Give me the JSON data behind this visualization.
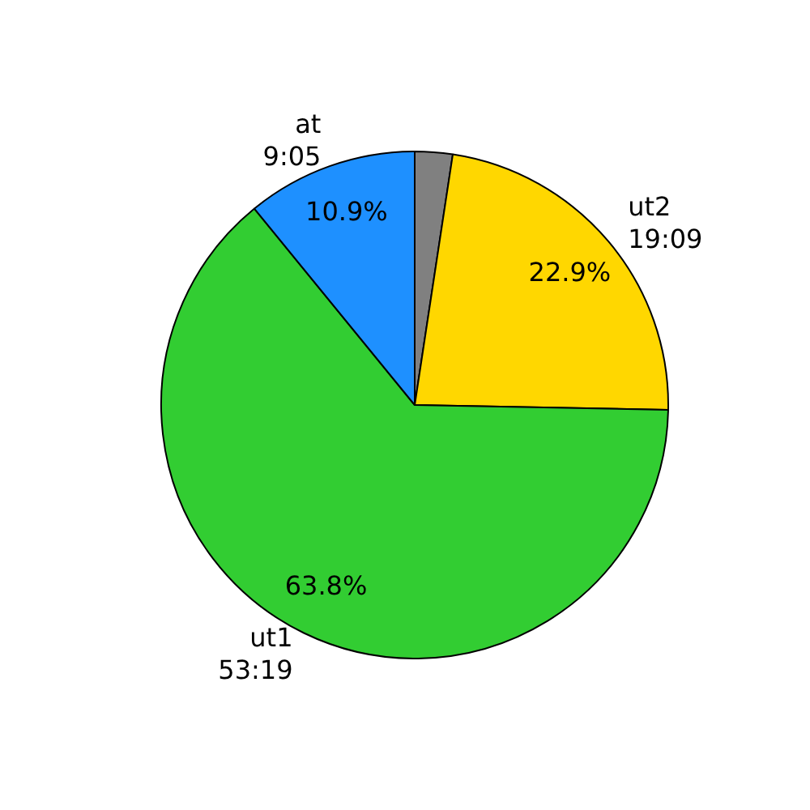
{
  "chart_data": {
    "type": "pie",
    "categories": [
      null,
      "ut2\n19:09",
      "ut1\n53:19",
      "at\n9:05"
    ],
    "values": [
      2.4,
      22.9,
      63.8,
      10.9
    ],
    "colors": [
      "#808080",
      "#ffd700",
      "#32cd32",
      "#1e90ff"
    ],
    "value_labels": [
      null,
      "22.9%",
      "63.8%",
      "10.9%"
    ]
  }
}
